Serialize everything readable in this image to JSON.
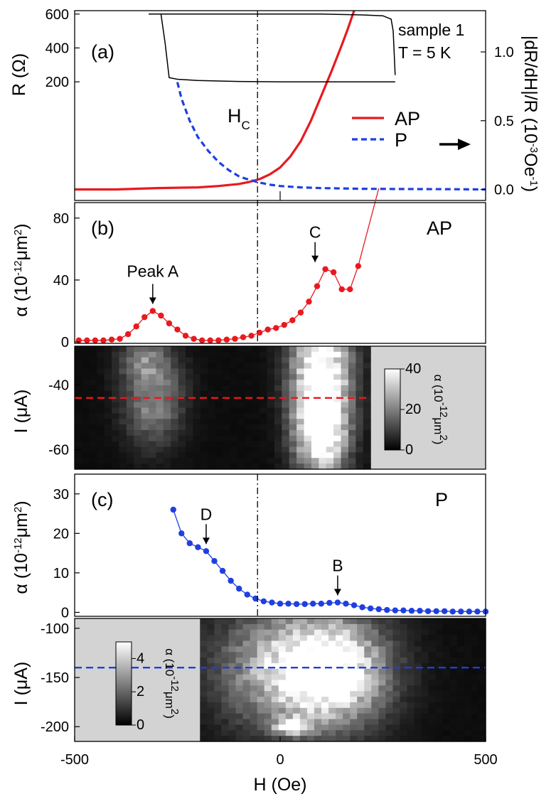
{
  "chart_data": [
    {
      "id": "a",
      "type": "line",
      "panel_label": "(a)",
      "ylabel": "R (Ω)",
      "ylabel_right": "|dR/dH|/R (10⁻³Oe⁻¹)",
      "text_notes": [
        "sample 1",
        "T = 5 K"
      ],
      "hc_label": "H",
      "hc_sub": "C",
      "xlim": [
        -500,
        500
      ],
      "ylim_left": [
        -500,
        620
      ],
      "ylim_right": [
        -0.08,
        1.3
      ],
      "yticks_left": [
        200,
        400,
        600
      ],
      "yticks_right": [
        0.0,
        0.5,
        1.0
      ],
      "ytick_labels_right": [
        "0.0",
        "0.5",
        "1.0"
      ],
      "legend": {
        "position": "right",
        "arrow": "right"
      },
      "series": [
        {
          "name": "AP",
          "axis": "right",
          "color": "#e8191f",
          "style": "solid",
          "x": [
            -500,
            -400,
            -300,
            -200,
            -150,
            -100,
            -75,
            -50,
            -25,
            0,
            25,
            50,
            75,
            100,
            125,
            150,
            165,
            180
          ],
          "y": [
            0.0,
            0.0,
            0.01,
            0.015,
            0.025,
            0.04,
            0.055,
            0.075,
            0.11,
            0.16,
            0.24,
            0.35,
            0.5,
            0.68,
            0.86,
            1.05,
            1.17,
            1.3
          ]
        },
        {
          "name": "P",
          "axis": "right",
          "color": "#1f3fe0",
          "style": "dashed",
          "x": [
            -250,
            -240,
            -220,
            -200,
            -175,
            -150,
            -125,
            -100,
            -75,
            -50,
            -25,
            0,
            50,
            100,
            200,
            300,
            400,
            500
          ],
          "y": [
            0.78,
            0.66,
            0.5,
            0.38,
            0.28,
            0.2,
            0.14,
            0.095,
            0.07,
            0.05,
            0.035,
            0.025,
            0.015,
            0.01,
            0.005,
            0.003,
            0.002,
            0.0
          ]
        },
        {
          "name": "R",
          "axis": "left",
          "color": "#000000",
          "style": "solid",
          "x": [
            -320,
            -300,
            -280,
            -270,
            -250,
            -200,
            -100,
            0,
            100,
            200,
            250,
            270,
            275,
            280
          ],
          "y": [
            600,
            600,
            600,
            600,
            600,
            600,
            600,
            600,
            600,
            595,
            590,
            570,
            500,
            240
          ]
        },
        {
          "name": "R",
          "axis": "left",
          "color": "#000000",
          "style": "solid",
          "x": [
            -320,
            -290,
            -280,
            -270,
            -250,
            -200,
            -100,
            0,
            100,
            200,
            280
          ],
          "y": [
            600,
            600,
            430,
            225,
            215,
            208,
            202,
            200,
            200,
            200,
            200
          ]
        }
      ]
    },
    {
      "id": "b",
      "type": "line",
      "panel_label": "(b)",
      "mode_label": "AP",
      "ylabel": "α (10⁻¹²μm²)",
      "xlim": [
        -500,
        500
      ],
      "ylim": [
        0,
        90
      ],
      "yticks": [
        0,
        40,
        80
      ],
      "color": "#e8191f",
      "annotations": [
        {
          "text": "Peak A",
          "x": -310,
          "y": 20
        },
        {
          "text": "C",
          "x": 85,
          "y": 47
        }
      ],
      "series": [
        {
          "name": "AP",
          "x": [
            -490,
            -470,
            -450,
            -430,
            -410,
            -390,
            -370,
            -350,
            -330,
            -310,
            -290,
            -270,
            -250,
            -230,
            -210,
            -190,
            -170,
            -150,
            -130,
            -110,
            -90,
            -70,
            -50,
            -30,
            -10,
            10,
            30,
            50,
            70,
            90,
            110,
            130,
            150,
            170,
            190
          ],
          "y": [
            1,
            1,
            1,
            1,
            1.5,
            2,
            5,
            10,
            16,
            20,
            17,
            12,
            8,
            4,
            2,
            1,
            1,
            1,
            1.5,
            2,
            3,
            4,
            6,
            8,
            9,
            11,
            14,
            19,
            26,
            36,
            47,
            45,
            34,
            34,
            49
          ]
        }
      ]
    },
    {
      "id": "b-map",
      "type": "heatmap",
      "ylabel": "I (μA)",
      "xlim": [
        -500,
        500
      ],
      "ylim": [
        -66,
        -28
      ],
      "yticks": [
        -60,
        -40
      ],
      "colorbar": {
        "label": "α (10⁻¹²μm²)",
        "ticks": [
          0,
          20,
          40
        ],
        "range": [
          0,
          40
        ]
      },
      "cut_line": {
        "y": -44,
        "color": "#e8191f"
      },
      "data_x_range": [
        -500,
        220
      ],
      "features": [
        {
          "x": -310,
          "y": -44,
          "value": 20,
          "width": 70,
          "height": 14
        },
        {
          "x": -330,
          "y": -32,
          "value": 12,
          "width": 60,
          "height": 6
        },
        {
          "x": 100,
          "y": -35,
          "value": 44,
          "width": 70,
          "height": 20
        },
        {
          "x": 100,
          "y": -55,
          "value": 38,
          "width": 60,
          "height": 14
        }
      ]
    },
    {
      "id": "c",
      "type": "line",
      "panel_label": "(c)",
      "mode_label": "P",
      "ylabel": "α (10⁻¹²μm²)",
      "xlim": [
        -500,
        500
      ],
      "ylim": [
        -1,
        35
      ],
      "yticks": [
        0,
        10,
        20,
        30
      ],
      "color": "#1f3fe0",
      "annotations": [
        {
          "text": "D",
          "x": -180,
          "y": 15.5
        },
        {
          "text": "B",
          "x": 140,
          "y": 2.5
        }
      ],
      "series": [
        {
          "name": "P",
          "x": [
            -260,
            -240,
            -220,
            -200,
            -180,
            -160,
            -140,
            -120,
            -100,
            -80,
            -60,
            -40,
            -20,
            0,
            20,
            40,
            60,
            80,
            100,
            120,
            140,
            160,
            180,
            200,
            220,
            240,
            260,
            280,
            300,
            320,
            340,
            360,
            380,
            400,
            420,
            440,
            460,
            480,
            500
          ],
          "y": [
            26,
            20,
            17.5,
            16.5,
            15.5,
            13,
            10.5,
            8,
            6,
            4.5,
            3.5,
            2.8,
            2.5,
            2.2,
            2.2,
            2.1,
            2.1,
            2.2,
            2.2,
            2.4,
            2.5,
            2.2,
            1.8,
            1.3,
            1.0,
            0.8,
            0.6,
            0.5,
            0.5,
            0.4,
            0.4,
            0.3,
            0.3,
            0.3,
            0.2,
            0.2,
            0.2,
            0.2,
            0.2
          ]
        }
      ]
    },
    {
      "id": "c-map",
      "type": "heatmap",
      "ylabel": "I (μA)",
      "xlabel": "H (Oe)",
      "xlim": [
        -500,
        500
      ],
      "xticks": [
        -500,
        0,
        500
      ],
      "ylim": [
        -215,
        -90
      ],
      "yticks": [
        -200,
        -150,
        -100
      ],
      "colorbar": {
        "label": "α (10⁻¹²μm²)",
        "ticks": [
          0,
          2,
          4
        ],
        "range": [
          0,
          5
        ]
      },
      "cut_line": {
        "y": -140,
        "color": "#1f3fe0"
      },
      "data_x_range": [
        -195,
        500
      ],
      "features": [
        {
          "x": 40,
          "y": -140,
          "value": 4,
          "width": 180,
          "height": 60
        },
        {
          "x": 130,
          "y": -145,
          "value": 3.5,
          "width": 120,
          "height": 50
        },
        {
          "x": 30,
          "y": -200,
          "value": 4.5,
          "width": 40,
          "height": 8
        }
      ]
    }
  ]
}
